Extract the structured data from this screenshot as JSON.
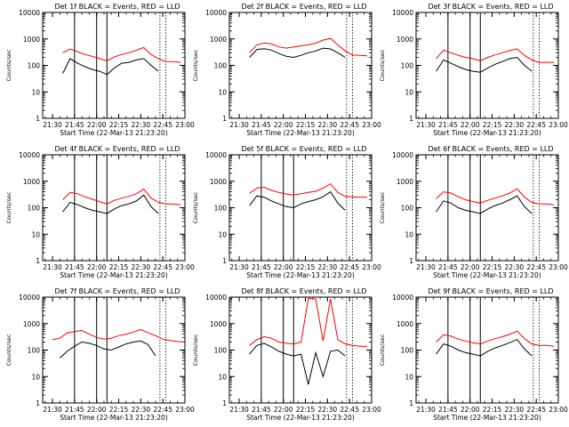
{
  "figure": {
    "colors": {
      "black_series": "#000000",
      "red_series": "#ff0000",
      "frame": "#000000"
    },
    "panel_titles": [
      "Det 1f  BLACK = Events, RED = LLD",
      "Det 2f  BLACK = Events, RED = LLD",
      "Det 3f  BLACK = Events, RED = LLD",
      "Det 4f  BLACK = Events, RED = LLD",
      "Det 5f  BLACK = Events, RED = LLD",
      "Det 6f  BLACK = Events, RED = LLD",
      "Det 7f  BLACK = Events, RED = LLD",
      "Det 8f  BLACK = Events, RED = LLD",
      "Det 9f  BLACK = Events, RED = LLD"
    ],
    "xlabel": "Start Time (22-Mar-13 21:23:20)",
    "ylabel": "Counts/sec",
    "x_ticks": [
      "21:30",
      "21:45",
      "22:00",
      "22:15",
      "22:30",
      "22:45",
      "23:00"
    ],
    "y_ticks": [
      "1",
      "10",
      "100",
      "1000",
      "10000"
    ]
  },
  "chart_data": [
    {
      "type": "line",
      "title": "Det 1f  BLACK = Events, RED = LLD",
      "yscale": "log",
      "ylim": [
        1,
        10000
      ],
      "xlabel": "Start Time (22-Mar-13 21:23:20)",
      "ylabel": "Counts/sec",
      "x": [
        "21:37",
        "21:42",
        "21:47",
        "21:52",
        "21:57",
        "22:02",
        "22:07",
        "22:12",
        "22:17",
        "22:22",
        "22:27",
        "22:32",
        "22:37",
        "22:42",
        "22:47",
        "22:52",
        "22:57"
      ],
      "solid_lines": [
        "21:45",
        "22:00",
        "22:07"
      ],
      "dotted_lines": [
        "22:43",
        "22:47"
      ],
      "series": [
        {
          "color": "#ff0000",
          "values": [
            300,
            420,
            330,
            260,
            220,
            180,
            150,
            210,
            260,
            300,
            380,
            470,
            260,
            180,
            140,
            140,
            130
          ]
        },
        {
          "color": "#000000",
          "values": [
            50,
            180,
            120,
            90,
            70,
            60,
            45,
            80,
            120,
            130,
            160,
            180,
            100,
            60,
            null,
            null,
            null
          ]
        }
      ]
    },
    {
      "type": "line",
      "title": "Det 2f  BLACK = Events, RED = LLD",
      "yscale": "log",
      "ylim": [
        1,
        10000
      ],
      "xlabel": "Start Time (22-Mar-13 21:23:20)",
      "ylabel": "Counts/sec",
      "x": [
        "21:37",
        "21:42",
        "21:47",
        "21:52",
        "21:57",
        "22:02",
        "22:07",
        "22:12",
        "22:17",
        "22:22",
        "22:27",
        "22:32",
        "22:37",
        "22:42",
        "22:47",
        "22:52",
        "22:57"
      ],
      "solid_lines": [],
      "dotted_lines": [
        "22:43",
        "22:47"
      ],
      "series": [
        {
          "color": "#ff0000",
          "values": [
            300,
            600,
            700,
            650,
            500,
            450,
            500,
            550,
            600,
            700,
            900,
            1050,
            600,
            350,
            250,
            240,
            230
          ]
        },
        {
          "color": "#000000",
          "values": [
            200,
            400,
            430,
            380,
            280,
            220,
            200,
            240,
            300,
            350,
            450,
            420,
            300,
            200,
            null,
            null,
            null
          ]
        }
      ]
    },
    {
      "type": "line",
      "title": "Det 3f  BLACK = Events, RED = LLD",
      "yscale": "log",
      "ylim": [
        1,
        10000
      ],
      "xlabel": "Start Time (22-Mar-13 21:23:20)",
      "ylabel": "Counts/sec",
      "x": [
        "21:37",
        "21:42",
        "21:47",
        "21:52",
        "21:57",
        "22:02",
        "22:07",
        "22:12",
        "22:17",
        "22:22",
        "22:27",
        "22:32",
        "22:37",
        "22:42",
        "22:47",
        "22:52",
        "22:57"
      ],
      "solid_lines": [
        "21:45",
        "22:00",
        "22:07"
      ],
      "dotted_lines": [
        "22:43",
        "22:47"
      ],
      "series": [
        {
          "color": "#ff0000",
          "values": [
            180,
            380,
            300,
            240,
            200,
            180,
            150,
            200,
            250,
            300,
            370,
            420,
            240,
            160,
            130,
            130,
            130
          ]
        },
        {
          "color": "#000000",
          "values": [
            60,
            160,
            120,
            90,
            70,
            60,
            55,
            80,
            110,
            140,
            180,
            200,
            100,
            60,
            null,
            null,
            null
          ]
        }
      ]
    },
    {
      "type": "line",
      "title": "Det 4f  BLACK = Events, RED = LLD",
      "yscale": "log",
      "ylim": [
        1,
        10000
      ],
      "xlabel": "Start Time (22-Mar-13 21:23:20)",
      "ylabel": "Counts/sec",
      "x": [
        "21:37",
        "21:42",
        "21:47",
        "21:52",
        "21:57",
        "22:02",
        "22:07",
        "22:12",
        "22:17",
        "22:22",
        "22:27",
        "22:32",
        "22:37",
        "22:42",
        "22:47",
        "22:52",
        "22:57"
      ],
      "solid_lines": [
        "21:45",
        "22:00",
        "22:07"
      ],
      "dotted_lines": [
        "22:43",
        "22:47"
      ],
      "series": [
        {
          "color": "#ff0000",
          "values": [
            200,
            380,
            340,
            260,
            210,
            170,
            140,
            190,
            230,
            270,
            340,
            500,
            230,
            160,
            140,
            140,
            130
          ]
        },
        {
          "color": "#000000",
          "values": [
            70,
            160,
            130,
            100,
            80,
            70,
            60,
            90,
            120,
            140,
            180,
            300,
            110,
            60,
            null,
            null,
            null
          ]
        }
      ]
    },
    {
      "type": "line",
      "title": "Det 5f  BLACK = Events, RED = LLD",
      "yscale": "log",
      "ylim": [
        1,
        10000
      ],
      "xlabel": "Start Time (22-Mar-13 21:23:20)",
      "ylabel": "Counts/sec",
      "x": [
        "21:37",
        "21:42",
        "21:47",
        "21:52",
        "21:57",
        "22:02",
        "22:07",
        "22:12",
        "22:17",
        "22:22",
        "22:27",
        "22:32",
        "22:37",
        "22:42",
        "22:47",
        "22:52",
        "22:57"
      ],
      "solid_lines": [
        "21:45",
        "22:00",
        "22:07"
      ],
      "dotted_lines": [
        "22:43",
        "22:47"
      ],
      "series": [
        {
          "color": "#ff0000",
          "values": [
            350,
            550,
            600,
            450,
            380,
            330,
            300,
            340,
            380,
            420,
            550,
            800,
            380,
            270,
            260,
            250,
            250
          ]
        },
        {
          "color": "#000000",
          "values": [
            120,
            280,
            250,
            180,
            140,
            110,
            100,
            140,
            170,
            200,
            260,
            400,
            150,
            80,
            null,
            null,
            null
          ]
        }
      ]
    },
    {
      "type": "line",
      "title": "Det 6f  BLACK = Events, RED = LLD",
      "yscale": "log",
      "ylim": [
        1,
        10000
      ],
      "xlabel": "Start Time (22-Mar-13 21:23:20)",
      "ylabel": "Counts/sec",
      "x": [
        "21:37",
        "21:42",
        "21:47",
        "21:52",
        "21:57",
        "22:02",
        "22:07",
        "22:12",
        "22:17",
        "22:22",
        "22:27",
        "22:32",
        "22:37",
        "22:42",
        "22:47",
        "22:52",
        "22:57"
      ],
      "solid_lines": [
        "21:45",
        "22:00",
        "22:07"
      ],
      "dotted_lines": [
        "22:43",
        "22:47"
      ],
      "series": [
        {
          "color": "#ff0000",
          "values": [
            220,
            400,
            360,
            260,
            200,
            170,
            150,
            190,
            230,
            280,
            360,
            520,
            250,
            160,
            140,
            140,
            130
          ]
        },
        {
          "color": "#000000",
          "values": [
            70,
            180,
            150,
            100,
            80,
            70,
            60,
            90,
            120,
            150,
            200,
            280,
            110,
            60,
            null,
            null,
            null
          ]
        }
      ]
    },
    {
      "type": "line",
      "title": "Det 7f  BLACK = Events, RED = LLD",
      "yscale": "log",
      "ylim": [
        1,
        10000
      ],
      "xlabel": "Start Time (22-Mar-13 21:23:20)",
      "ylabel": "Counts/sec",
      "x": [
        "21:30",
        "21:35",
        "21:40",
        "21:45",
        "21:50",
        "21:55",
        "22:00",
        "22:05",
        "22:10",
        "22:15",
        "22:20",
        "22:25",
        "22:30",
        "22:35",
        "22:40",
        "22:45",
        "22:50",
        "22:55",
        "23:00"
      ],
      "solid_lines": [
        "21:45",
        "22:00",
        "22:07"
      ],
      "dotted_lines": [
        "22:43",
        "22:47"
      ],
      "series": [
        {
          "color": "#ff0000",
          "values": [
            250,
            280,
            450,
            500,
            550,
            400,
            300,
            260,
            280,
            350,
            400,
            480,
            600,
            450,
            350,
            260,
            230,
            210,
            200
          ]
        },
        {
          "color": "#000000",
          "values": [
            null,
            50,
            90,
            140,
            200,
            180,
            150,
            110,
            100,
            130,
            170,
            200,
            220,
            160,
            60,
            null,
            null,
            null,
            null
          ]
        }
      ]
    },
    {
      "type": "line",
      "title": "Det 8f  BLACK = Events, RED = LLD",
      "yscale": "log",
      "ylim": [
        1,
        10000
      ],
      "xlabel": "Start Time (22-Mar-13 21:23:20)",
      "ylabel": "Counts/sec",
      "x": [
        "21:37",
        "21:42",
        "21:47",
        "21:52",
        "21:57",
        "22:02",
        "22:07",
        "22:12",
        "22:17",
        "22:22",
        "22:27",
        "22:32",
        "22:37",
        "22:42",
        "22:47",
        "22:52",
        "22:57"
      ],
      "solid_lines": [
        "21:45",
        "22:00",
        "22:07"
      ],
      "dotted_lines": [
        "22:43",
        "22:47"
      ],
      "series": [
        {
          "color": "#ff0000",
          "values": [
            150,
            250,
            320,
            280,
            200,
            180,
            170,
            200,
            9000,
            8500,
            220,
            8500,
            250,
            170,
            150,
            140,
            140
          ]
        },
        {
          "color": "#000000",
          "values": [
            70,
            150,
            180,
            130,
            90,
            70,
            60,
            70,
            5,
            80,
            10,
            90,
            100,
            60,
            null,
            null,
            null
          ]
        }
      ]
    },
    {
      "type": "line",
      "title": "Det 9f  BLACK = Events, RED = LLD",
      "yscale": "log",
      "ylim": [
        1,
        10000
      ],
      "xlabel": "Start Time (22-Mar-13 21:23:20)",
      "ylabel": "Counts/sec",
      "x": [
        "21:37",
        "21:42",
        "21:47",
        "21:52",
        "21:57",
        "22:02",
        "22:07",
        "22:12",
        "22:17",
        "22:22",
        "22:27",
        "22:32",
        "22:37",
        "22:42",
        "22:47",
        "22:52",
        "22:57"
      ],
      "solid_lines": [
        "21:45",
        "22:00",
        "22:07"
      ],
      "dotted_lines": [
        "22:43",
        "22:47"
      ],
      "series": [
        {
          "color": "#ff0000",
          "values": [
            200,
            380,
            340,
            260,
            220,
            190,
            170,
            220,
            270,
            320,
            400,
            520,
            270,
            170,
            150,
            150,
            140
          ]
        },
        {
          "color": "#000000",
          "values": [
            70,
            170,
            140,
            100,
            80,
            70,
            60,
            90,
            120,
            150,
            190,
            250,
            110,
            60,
            null,
            null,
            null
          ]
        }
      ]
    }
  ]
}
